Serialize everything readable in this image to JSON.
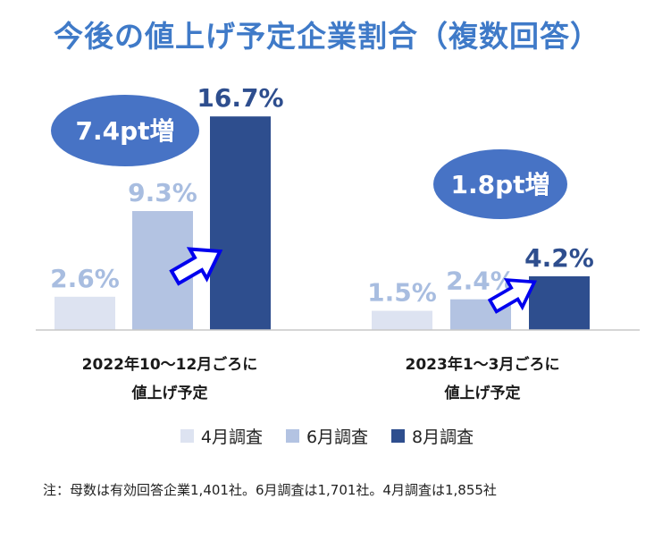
{
  "title": "今後の値上げ予定企業割合（複数回答）",
  "colors": {
    "title": "#3f7ac8",
    "series": [
      "#dde3f1",
      "#b3c3e2",
      "#2e4e8e"
    ],
    "label_light": "#a8bde0",
    "label_dark": "#2e4e8e",
    "badge": "#4773c5",
    "arrow_border": "#0000ee"
  },
  "chart_data": {
    "type": "bar",
    "categories": [
      "2022年10～12月ごろに 値上げ予定",
      "2023年1～3月ごろに 値上げ予定"
    ],
    "category_lines": [
      [
        "2022年10～12月ごろに",
        "値上げ予定"
      ],
      [
        "2023年1～3月ごろに",
        "値上げ予定"
      ]
    ],
    "series": [
      {
        "name": "4月調査",
        "values": [
          2.6,
          1.5
        ],
        "labels": [
          "2.6%",
          "1.5%"
        ]
      },
      {
        "name": "6月調査",
        "values": [
          9.3,
          2.4
        ],
        "labels": [
          "9.3%",
          "2.4%"
        ]
      },
      {
        "name": "8月調査",
        "values": [
          16.7,
          4.2
        ],
        "labels": [
          "16.7%",
          "4.2%"
        ]
      }
    ],
    "annotations": [
      "7.4pt増",
      "1.8pt増"
    ],
    "ylim": [
      0,
      18
    ],
    "grid": false,
    "legend_position": "bottom"
  },
  "legend": [
    "4月調査",
    "6月調査",
    "8月調査"
  ],
  "note": "注：母数は有効回答企業1,401社。6月調査は1,701社。4月調査は1,855社"
}
